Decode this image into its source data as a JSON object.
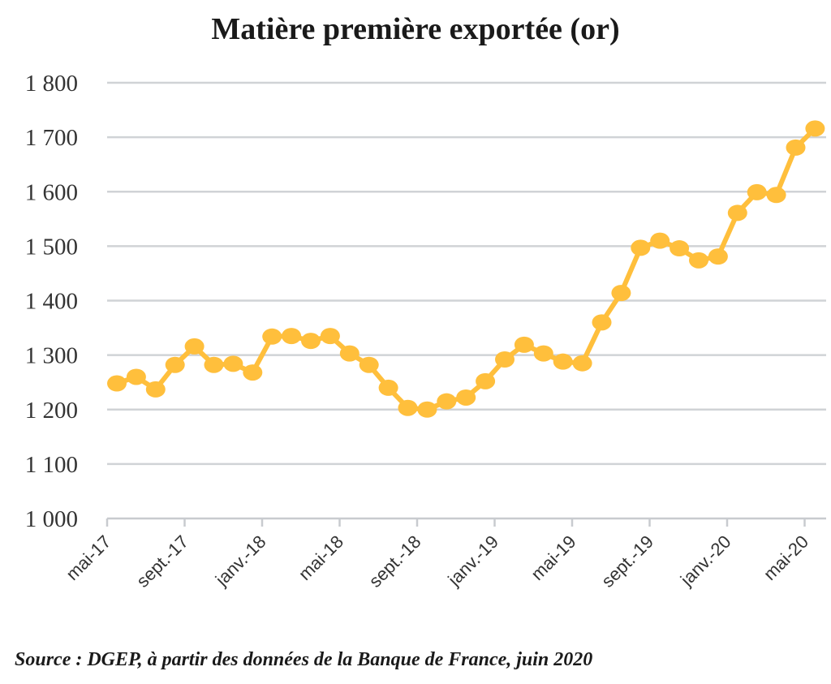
{
  "chart_data": {
    "type": "line",
    "title": "Matière première exportée (or)",
    "xlabel": "",
    "ylabel": "",
    "ylim": [
      1000,
      1800
    ],
    "yticks": [
      1000,
      1100,
      1200,
      1300,
      1400,
      1500,
      1600,
      1700,
      1800
    ],
    "ytick_labels": [
      "1 000",
      "1 100",
      "1 200",
      "1 300",
      "1 400",
      "1 500",
      "1 600",
      "1 700",
      "1 800"
    ],
    "xtick_labels": [
      "mai-17",
      "sept.-17",
      "janv.-18",
      "mai-18",
      "sept.-18",
      "janv.-19",
      "mai-19",
      "sept.-19",
      "janv.-20",
      "mai-20"
    ],
    "grid": true,
    "legend": "none",
    "color": "#FFBF3C",
    "series": [
      {
        "values": [
          1248,
          1260,
          1237,
          1282,
          1316,
          1282,
          1284,
          1268,
          1334,
          1335,
          1326,
          1335,
          1303,
          1282,
          1240,
          1203,
          1200,
          1215,
          1222,
          1252,
          1292,
          1319,
          1303,
          1288,
          1285,
          1360,
          1414,
          1497,
          1510,
          1496,
          1474,
          1481,
          1561,
          1599,
          1594,
          1681,
          1716
        ]
      }
    ],
    "points_per_tick": 4
  },
  "source": "Source : DGEP, à partir des données de la Banque de France, juin 2020"
}
